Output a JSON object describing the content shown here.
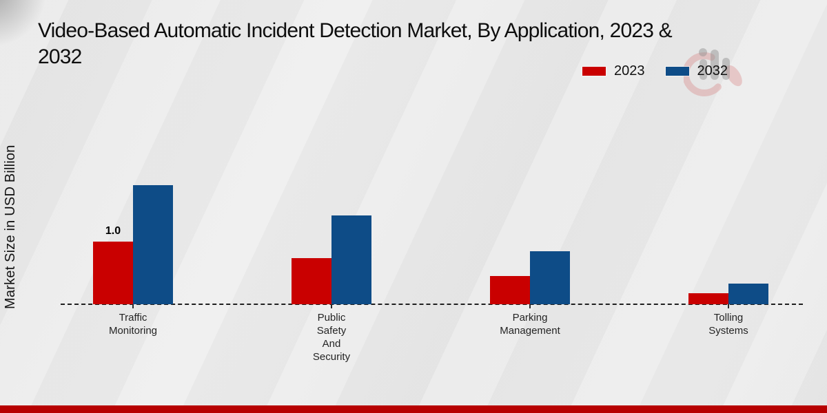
{
  "title": "Video-Based Automatic Incident Detection Market, By Application, 2023 &\n2032",
  "colors": {
    "bar_2023": "#c90000",
    "bar_2032": "#0e4c87",
    "bottom_bar": "#b70101",
    "background": "#ebebeb",
    "dashed_axis": "#1e1e1e"
  },
  "watermark": "mrfr-bar-chart-logo",
  "chart_data": {
    "type": "bar",
    "title": "Video-Based Automatic Incident Detection Market, By Application, 2023 & 2032",
    "ylabel": "Market Size in USD Billion",
    "xlabel": "",
    "categories": [
      "Traffic\nMonitoring",
      "Public\nSafety\nAnd\nSecurity",
      "Parking\nManagement",
      "Tolling\nSystems"
    ],
    "series": [
      {
        "name": "2023",
        "color": "#c90000",
        "values": [
          1.0,
          0.74,
          0.45,
          0.18
        ],
        "data_labels": [
          "1.0",
          "",
          "",
          ""
        ]
      },
      {
        "name": "2032",
        "color": "#0e4c87",
        "values": [
          1.9,
          1.42,
          0.85,
          0.33
        ],
        "data_labels": [
          "",
          "",
          "",
          ""
        ]
      }
    ],
    "ylim": [
      0,
      2.2
    ],
    "gridlines": false,
    "baseline_style": "dashed",
    "legend_position": "top-right"
  }
}
